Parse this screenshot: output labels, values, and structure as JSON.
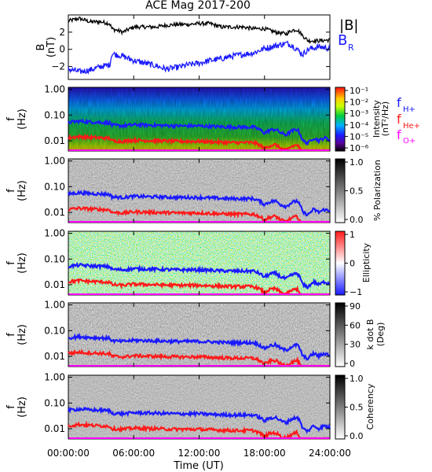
{
  "title": "ACE Mag 2017-200",
  "colors": {
    "B_total": "#000000",
    "B_R": "#1a1aff",
    "f_H": "#1a1aff",
    "f_He": "#ff1a1a",
    "f_O": "#ff00ff"
  },
  "x_axis": {
    "ticks": [
      "00:00:00",
      "06:00:00",
      "12:00:00",
      "18:00:00",
      "24:00:00"
    ],
    "label": "Time (UT)",
    "range_hours": [
      0,
      24
    ]
  },
  "legend_top": {
    "b_total": "|B|",
    "b_r": "B",
    "b_r_sub": "R"
  },
  "legend_freq": {
    "h": "f",
    "h_sub": "H+",
    "he": "f",
    "he_sub": "He+",
    "o": "f",
    "o_sub": "O+"
  },
  "panels": {
    "mag": {
      "ylabel": "B",
      "yunit": "(nT)",
      "yticks": [
        "2",
        "0",
        "−2"
      ]
    },
    "freq_yticks": [
      "1.00",
      "0.10",
      "0.01"
    ],
    "freq_ylabel": "f",
    "freq_yunit": "(Hz)",
    "intensity": {
      "cb_label_1": "Intensity",
      "cb_label_2": "(nT²/Hz)",
      "cb_ticks": [
        "10⁻¹",
        "10⁻²",
        "10⁻³",
        "10⁻⁴",
        "10⁻⁵",
        "10⁻⁶"
      ]
    },
    "polarization": {
      "cb_label": "% Polarization",
      "cb_ticks": [
        "1.0",
        "0.5",
        "0.0"
      ]
    },
    "ellipticity": {
      "cb_label": "Ellipticity",
      "cb_ticks": [
        "1",
        "0",
        "−1"
      ]
    },
    "kdotb": {
      "cb_label_1": "k dot B",
      "cb_label_2": "(Deg)",
      "cb_ticks": [
        "90",
        "60",
        "30",
        "0"
      ]
    },
    "coherency": {
      "cb_label": "Coherency",
      "cb_ticks": [
        "1.0",
        "0.5",
        "0.0"
      ]
    }
  },
  "chart_data": [
    {
      "type": "line",
      "panel": "mag",
      "x_unit": "hours UT",
      "xlim": [
        0,
        24
      ],
      "ylim": [
        -3.5,
        4
      ],
      "series": [
        {
          "name": "|B|",
          "x": [
            0,
            1,
            2,
            3,
            3.8,
            4,
            5,
            6,
            7,
            8,
            9,
            10,
            11,
            12,
            13,
            14,
            15,
            16,
            17,
            18,
            19,
            20,
            20.5,
            21,
            21.5,
            22,
            23,
            24
          ],
          "values": [
            3.3,
            3.6,
            3.2,
            3.2,
            3.0,
            2.4,
            2.0,
            2.6,
            2.6,
            2.6,
            2.8,
            2.9,
            2.9,
            3.0,
            3.0,
            2.6,
            2.6,
            2.6,
            2.4,
            2.4,
            2.0,
            1.8,
            2.2,
            2.3,
            1.6,
            1.0,
            1.0,
            1.1
          ]
        },
        {
          "name": "B",
          "x": [
            0,
            1,
            2,
            3,
            3.8,
            4,
            5,
            6,
            7,
            8,
            9,
            10,
            11,
            12,
            13,
            14,
            15,
            16,
            17,
            18,
            19,
            20,
            20.5,
            21,
            21.5,
            22,
            23,
            24
          ],
          "values": [
            -2.3,
            -2.6,
            -2.4,
            -2.0,
            -1.8,
            -0.5,
            -0.8,
            -1.3,
            -1.6,
            -1.9,
            -2.3,
            -2.1,
            -1.8,
            -1.6,
            -1.3,
            -1.1,
            -0.8,
            -0.6,
            -0.4,
            0.1,
            0.4,
            0.7,
            0.5,
            0.0,
            -0.6,
            0.0,
            0.3,
            0.1
          ]
        }
      ]
    },
    {
      "type": "line",
      "panel": "frequency-overlays",
      "x_unit": "hours UT",
      "y_unit": "Hz (log scale)",
      "ylim": [
        0.004,
        1.2
      ],
      "series": [
        {
          "name": "H+",
          "x": [
            0,
            1,
            2,
            3,
            3.8,
            4,
            5,
            6,
            8,
            10,
            12,
            14,
            15,
            16,
            17,
            17.5,
            18,
            18.5,
            19,
            19.5,
            20,
            20.5,
            21,
            21.5,
            22,
            22.5,
            23,
            23.5,
            24
          ],
          "values": [
            0.052,
            0.058,
            0.054,
            0.052,
            0.05,
            0.04,
            0.038,
            0.042,
            0.04,
            0.038,
            0.038,
            0.035,
            0.034,
            0.034,
            0.034,
            0.028,
            0.02,
            0.026,
            0.028,
            0.02,
            0.017,
            0.024,
            0.028,
            0.01,
            0.008,
            0.013,
            0.01,
            0.013,
            0.011
          ]
        },
        {
          "name": "He+",
          "x": [
            0,
            1,
            2,
            3,
            3.8,
            4,
            5,
            6,
            8,
            10,
            12,
            14,
            15,
            16,
            17,
            17.5,
            18,
            18.5,
            19,
            19.5,
            20,
            20.5,
            21,
            21.5,
            22,
            22.5,
            23,
            23.5,
            24
          ],
          "values": [
            0.013,
            0.0145,
            0.0135,
            0.013,
            0.0125,
            0.01,
            0.0095,
            0.0105,
            0.01,
            0.0095,
            0.0095,
            0.0088,
            0.0085,
            0.0085,
            0.0085,
            0.007,
            0.005,
            0.0065,
            0.007,
            0.005,
            0.0043,
            0.006,
            0.007,
            0.0025,
            0.002,
            0.0033,
            0.0025,
            0.0033,
            0.0028
          ]
        },
        {
          "name": "O+",
          "x": [
            0,
            6,
            12,
            18,
            24
          ],
          "values": [
            0.0032,
            0.003,
            0.003,
            0.0028,
            0.0025
          ]
        }
      ]
    },
    {
      "type": "heatmap",
      "panel": "intensity",
      "x_unit": "hours UT",
      "y_unit": "Hz",
      "scale": "log color",
      "colorbar_range": [
        "1e-6",
        "1e-1"
      ]
    },
    {
      "type": "heatmap",
      "panel": "polarization",
      "x_unit": "hours UT",
      "y_unit": "Hz",
      "colorbar_range": [
        0,
        1
      ]
    },
    {
      "type": "heatmap",
      "panel": "ellipticity",
      "x_unit": "hours UT",
      "y_unit": "Hz",
      "colorbar_range": [
        -1,
        1
      ]
    },
    {
      "type": "heatmap",
      "panel": "kdotb",
      "x_unit": "hours UT",
      "y_unit": "Hz",
      "colorbar_range": [
        0,
        90
      ]
    },
    {
      "type": "heatmap",
      "panel": "coherency",
      "x_unit": "hours UT",
      "y_unit": "Hz",
      "colorbar_range": [
        0,
        1
      ]
    }
  ]
}
